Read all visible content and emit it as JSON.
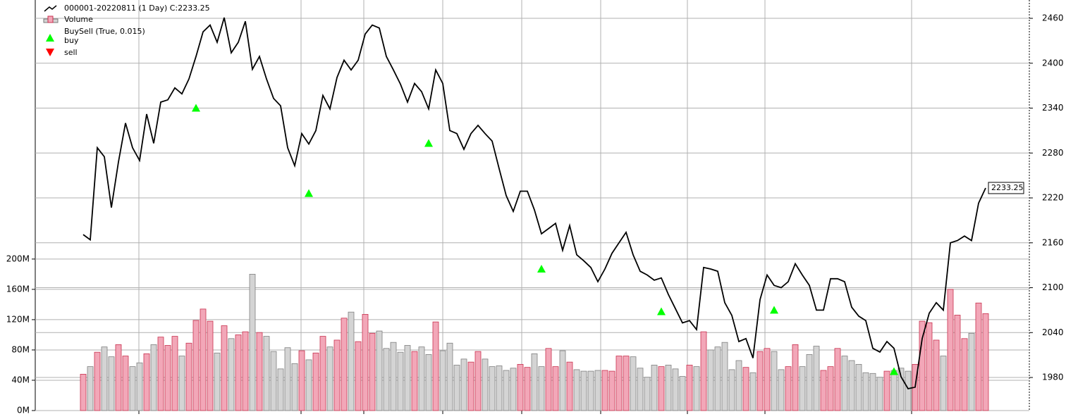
{
  "chart_data": {
    "type": "line",
    "legend": [
      "000001-20220811 (1 Day) C:2233.25",
      "Volume",
      "BuySell (True, 0.015)",
      "buy",
      "sell"
    ],
    "series": [
      {
        "name": "000001-20220811 (1 Day) C:2233.25",
        "color": "#000000",
        "axis": "y2",
        "values": [
          2171,
          2164,
          2287,
          2275,
          2207,
          2268,
          2320,
          2287,
          2270,
          2332,
          2293,
          2348,
          2351,
          2367,
          2359,
          2379,
          2409,
          2442,
          2451,
          2428,
          2461,
          2414,
          2428,
          2456,
          2392,
          2409,
          2379,
          2353,
          2343,
          2287,
          2263,
          2306,
          2292,
          2310,
          2357,
          2339,
          2381,
          2404,
          2391,
          2404,
          2439,
          2451,
          2447,
          2409,
          2391,
          2372,
          2348,
          2373,
          2362,
          2339,
          2391,
          2373,
          2310,
          2306,
          2285,
          2306,
          2317,
          2306,
          2296,
          2259,
          2223,
          2202,
          2229,
          2229,
          2204,
          2172,
          2179,
          2186,
          2150,
          2183,
          2144,
          2136,
          2127,
          2108,
          2125,
          2146,
          2160,
          2174,
          2144,
          2122,
          2117,
          2110,
          2113,
          2091,
          2072,
          2053,
          2056,
          2044,
          2127,
          2125,
          2122,
          2080,
          2063,
          2028,
          2032,
          2006,
          2084,
          2117,
          2103,
          2100,
          2108,
          2132,
          2117,
          2103,
          2070,
          2070,
          2112,
          2112,
          2108,
          2074,
          2062,
          2056,
          2019,
          2014,
          2028,
          2019,
          1981,
          1965,
          1967,
          2032,
          2066,
          2080,
          2070,
          2160,
          2163,
          2169,
          2163,
          2213,
          2233.25
        ],
        "last_label": "2233.25"
      },
      {
        "name": "Volume",
        "type": "bar",
        "up_color": "#f2a7b8",
        "up_edge": "#c8324f",
        "down_color": "#d4d4d4",
        "down_edge": "#7f7f7f",
        "values": [
          48,
          58,
          77,
          84,
          71,
          87,
          72,
          58,
          63,
          75,
          87,
          97,
          86,
          98,
          72,
          89,
          119,
          134,
          118,
          76,
          112,
          95,
          100,
          104,
          180,
          103,
          98,
          78,
          55,
          83,
          62,
          79,
          67,
          76,
          98,
          84,
          93,
          122,
          130,
          91,
          127,
          102,
          105,
          82,
          90,
          77,
          86,
          78,
          84,
          74,
          117,
          79,
          89,
          60,
          68,
          64,
          78,
          68,
          58,
          59,
          53,
          56,
          61,
          57,
          75,
          58,
          82,
          58,
          79,
          64,
          54,
          52,
          52,
          53,
          53,
          52,
          72,
          72,
          71,
          56,
          44,
          60,
          58,
          60,
          55,
          45,
          60,
          58,
          104,
          80,
          84,
          90,
          54,
          66,
          57,
          50,
          78,
          82,
          78,
          54,
          58,
          87,
          58,
          74,
          85,
          53,
          58,
          82,
          72,
          66,
          61,
          50,
          49,
          44,
          52,
          53,
          56,
          52,
          61,
          118,
          116,
          93,
          72,
          160,
          126,
          95,
          102,
          142,
          128
        ]
      }
    ],
    "buy": {
      "name": "buy",
      "color": "#00ff00",
      "index": [
        16,
        32,
        49,
        65,
        82,
        98,
        115
      ],
      "values": [
        2340,
        2226,
        2293,
        2125,
        2068,
        2070,
        1988
      ]
    },
    "sell": {
      "name": "sell",
      "color": "#ff0000"
    },
    "xticks": [
      7.9,
      30.9,
      39.8,
      51,
      62.2,
      73.4,
      85.7,
      96.7,
      117.5
    ],
    "ylim": [
      0,
      542
    ],
    "yticks": [
      {
        "value": 0,
        "label": "0M"
      },
      {
        "value": 40,
        "label": "40M"
      },
      {
        "value": 80,
        "label": "80M"
      },
      {
        "value": 120,
        "label": "120M"
      },
      {
        "value": 160,
        "label": "160M"
      },
      {
        "value": 200,
        "label": "200M"
      }
    ],
    "y2lim": [
      1935.8,
      2484.5
    ],
    "y2ticks": [
      1980,
      2040,
      2100,
      2160,
      2220,
      2280,
      2340,
      2400,
      2460
    ],
    "grid": true
  }
}
